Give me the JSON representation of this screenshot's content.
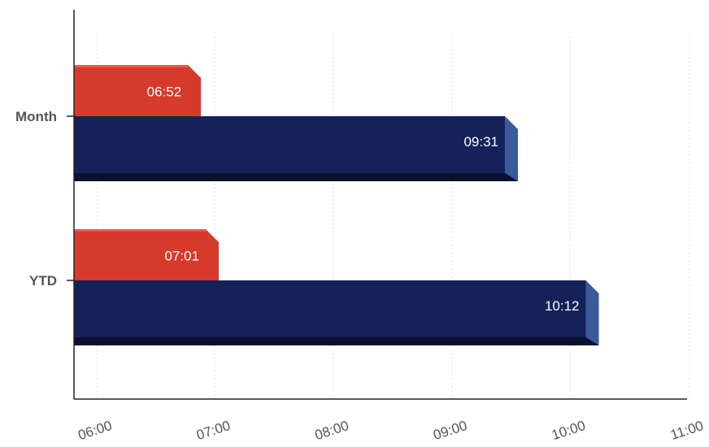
{
  "chart_data": {
    "type": "bar",
    "orientation": "horizontal",
    "categories": [
      "Month",
      "YTD"
    ],
    "series": [
      {
        "color": "#d63a2c",
        "values": [
          "06:52",
          "07:01"
        ],
        "labels": [
          "06:52",
          "07:01"
        ]
      },
      {
        "color": "#15225a",
        "values": [
          "09:31",
          "10:12"
        ],
        "labels": [
          "09:31",
          "10:12"
        ]
      }
    ],
    "x_ticks": [
      "06:00",
      "07:00",
      "08:00",
      "09:00",
      "10:00",
      "11:00"
    ],
    "xlim": [
      "06:00",
      "11:00"
    ],
    "grid": "vertical-dotted",
    "title": "",
    "xlabel": "",
    "ylabel": ""
  }
}
